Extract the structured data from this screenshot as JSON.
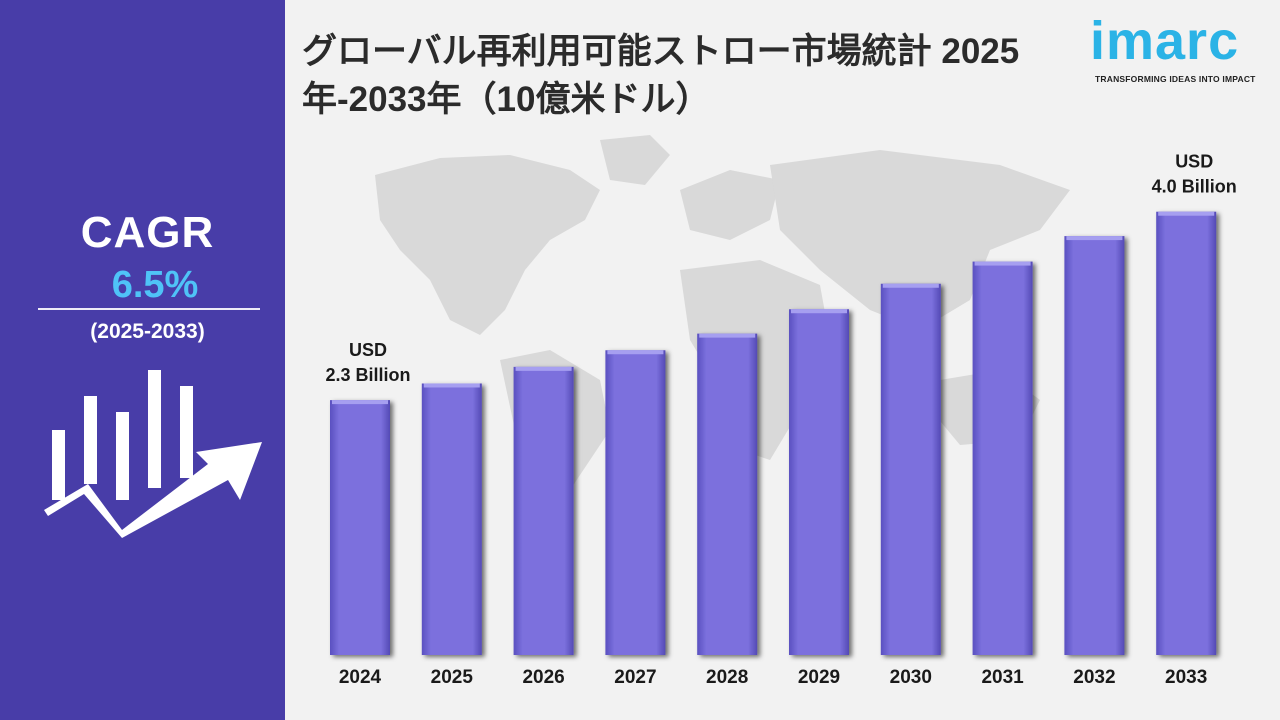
{
  "title": "グローバル再利用可能ストロー市場統計 2025年-2033年（10億米ドル）",
  "sidebar": {
    "cagr_label": "CAGR",
    "cagr_value": "6.5%",
    "cagr_period": "(2025-2033)",
    "icon": "growth-chart-arrow-icon"
  },
  "logo": {
    "name": "imarc",
    "tagline": "TRANSFORMING IDEAS INTO IMPACT"
  },
  "colors": {
    "sidebar": "#483da8",
    "bar": "#7b70dd",
    "accent": "#4fc3f7",
    "logo": "#2bb3e6"
  },
  "chart_data": {
    "type": "bar",
    "title": "グローバル再利用可能ストロー市場統計 2025年-2033年（10億米ドル）",
    "categories": [
      "2024",
      "2025",
      "2026",
      "2027",
      "2028",
      "2029",
      "2030",
      "2031",
      "2032",
      "2033"
    ],
    "values": [
      2.3,
      2.45,
      2.6,
      2.75,
      2.9,
      3.12,
      3.35,
      3.55,
      3.78,
      4.0
    ],
    "ylim": [
      0,
      4.25
    ],
    "xlabel": "",
    "ylabel": "",
    "grid": false,
    "annotations": [
      {
        "category": "2024",
        "line1": "USD",
        "line2": "2.3 Billion"
      },
      {
        "category": "2033",
        "line1": "USD",
        "line2": "4.0 Billion"
      }
    ]
  }
}
